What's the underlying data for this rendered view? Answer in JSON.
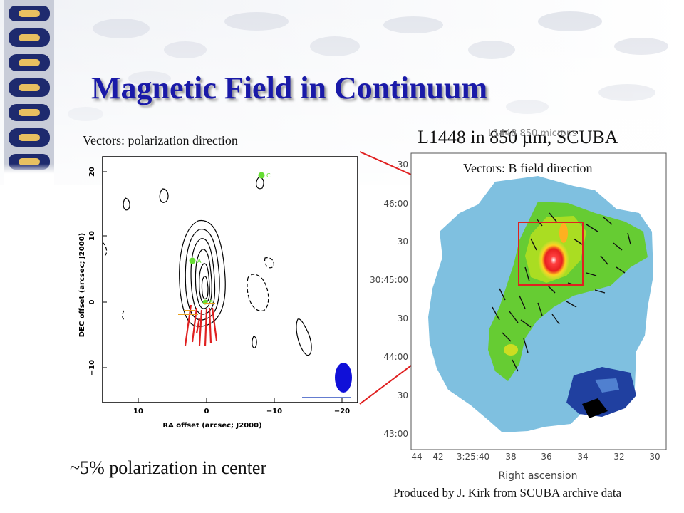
{
  "slide": {
    "title": "Magnetic Field in Continuum",
    "left_caption": "Vectors: polarization direction",
    "right_title": "L1448 in 850 µm, SCUBA",
    "right_caption": "Vectors: B field direction",
    "bottom_note": "~5% polarization in center",
    "credit": "Produced by J. Kirk from SCUBA archive data"
  },
  "left_plot": {
    "xlabel": "RA offset (arcsec; J2000)",
    "ylabel": "DEC offset (arcsec; J2000)",
    "xticks": [
      "10",
      "0",
      "−10",
      "−20"
    ],
    "yticks": [
      "20",
      "10",
      "0",
      "−10"
    ],
    "sources": [
      {
        "label": "A"
      },
      {
        "label": "B"
      },
      {
        "label": "C"
      }
    ],
    "colors": {
      "source": "#66dd33",
      "vector": "#e02020",
      "beam": "#1010d8"
    }
  },
  "right_plot": {
    "header": "L1448 850 microns",
    "xlabel": "Right ascension",
    "xticks": [
      "44",
      "42",
      "3:25:40",
      "38",
      "36",
      "34",
      "32",
      "30"
    ],
    "yticks": [
      "30",
      "46:00",
      "30",
      "30:45:00",
      "30",
      "44:00",
      "30",
      "43:00"
    ],
    "colors": {
      "low": "#7fbfe0",
      "mid": "#44cc22",
      "high": "#ff2020",
      "box": "#e02020"
    }
  }
}
